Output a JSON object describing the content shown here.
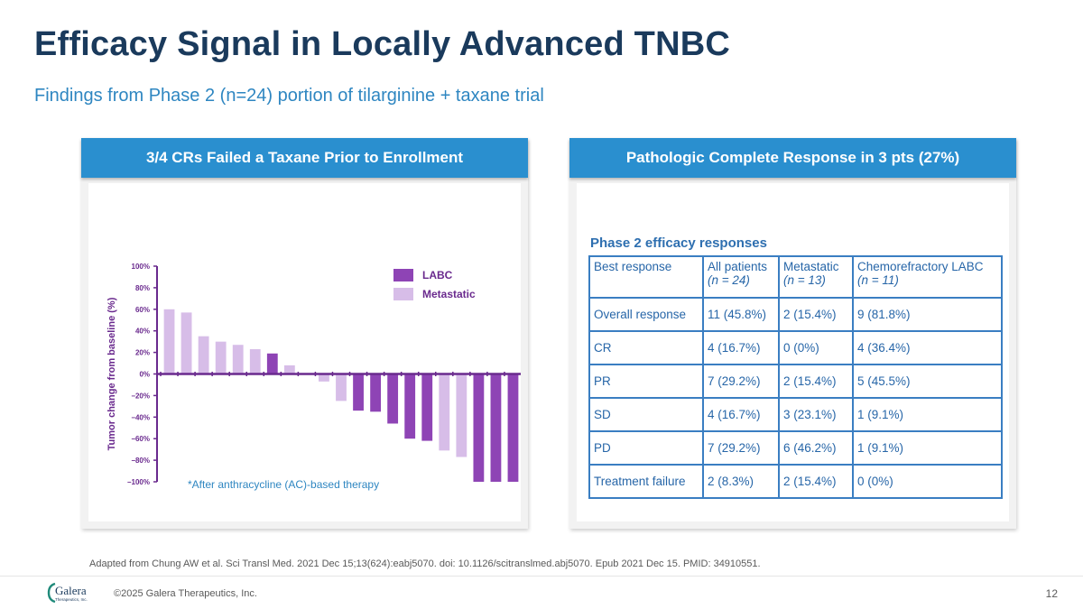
{
  "slide": {
    "title": "Efficacy Signal in Locally Advanced TNBC",
    "subtitle": "Findings from Phase 2 (n=24) portion of tilarginine + taxane trial",
    "left_panel_header": "3/4 CRs Failed a Taxane Prior to Enrollment",
    "right_panel_header": "Pathologic Complete Response in 3 pts (27%)",
    "footnote": "*After anthracycline (AC)-based therapy",
    "source": "Adapted from Chung AW et al. Sci Transl Med. 2021 Dec 15;13(624):eabj5070. doi: 10.1126/scitranslmed.abj5070. Epub 2021 Dec 15. PMID: 34910551.",
    "copyright": "©2025 Galera Therapeutics, Inc.",
    "page_number": "12",
    "logo_text": "Galera",
    "logo_subtext": "Therapeutics, Inc."
  },
  "colors": {
    "title": "#1a3a5c",
    "accent": "#2a8fcf",
    "labc": "#8e44b5",
    "metastatic": "#d7bde8",
    "table": "#2766a8"
  },
  "table": {
    "title": "Phase 2 efficacy responses",
    "headers": [
      {
        "label": "Best response",
        "sub": ""
      },
      {
        "label": "All patients",
        "sub": "(n = 24)"
      },
      {
        "label": "Metastatic",
        "sub": "(n = 13)"
      },
      {
        "label": "Chemorefractory LABC",
        "sub": "(n = 11)"
      }
    ],
    "rows": [
      [
        "Overall response",
        "11 (45.8%)",
        "2 (15.4%)",
        "9 (81.8%)"
      ],
      [
        "CR",
        "4 (16.7%)",
        "0 (0%)",
        "4 (36.4%)"
      ],
      [
        "PR",
        "7 (29.2%)",
        "2 (15.4%)",
        "5 (45.5%)"
      ],
      [
        "SD",
        "4 (16.7%)",
        "3 (23.1%)",
        "1 (9.1%)"
      ],
      [
        "PD",
        "7 (29.2%)",
        "6 (46.2%)",
        "1 (9.1%)"
      ],
      [
        "Treatment failure",
        "2 (8.3%)",
        "2 (15.4%)",
        "0 (0%)"
      ]
    ]
  },
  "chart_data": {
    "type": "bar",
    "ylabel": "Tumor change from baseline (%)",
    "ylim": [
      -100,
      100
    ],
    "yticks": [
      "100%",
      "80%",
      "60%",
      "40%",
      "20%",
      "0%",
      "−20%",
      "−40%",
      "−60%",
      "−80%",
      "−100%"
    ],
    "legend": [
      {
        "name": "LABC",
        "color": "#8e44b5"
      },
      {
        "name": "Metastatic",
        "color": "#d7bde8"
      }
    ],
    "bars": [
      {
        "value": 60,
        "group": "Metastatic"
      },
      {
        "value": 57,
        "group": "Metastatic"
      },
      {
        "value": 35,
        "group": "Metastatic"
      },
      {
        "value": 30,
        "group": "Metastatic"
      },
      {
        "value": 27,
        "group": "Metastatic"
      },
      {
        "value": 23,
        "group": "Metastatic"
      },
      {
        "value": 19,
        "group": "LABC"
      },
      {
        "value": 8,
        "group": "Metastatic"
      },
      {
        "value": 0,
        "group": "Metastatic"
      },
      {
        "value": -7,
        "group": "Metastatic"
      },
      {
        "value": -25,
        "group": "Metastatic"
      },
      {
        "value": -34,
        "group": "LABC"
      },
      {
        "value": -35,
        "group": "LABC"
      },
      {
        "value": -46,
        "group": "LABC"
      },
      {
        "value": -60,
        "group": "LABC"
      },
      {
        "value": -62,
        "group": "LABC"
      },
      {
        "value": -71,
        "group": "Metastatic"
      },
      {
        "value": -77,
        "group": "Metastatic"
      },
      {
        "value": -100,
        "group": "LABC"
      },
      {
        "value": -100,
        "group": "LABC"
      },
      {
        "value": -100,
        "group": "LABC"
      }
    ]
  }
}
